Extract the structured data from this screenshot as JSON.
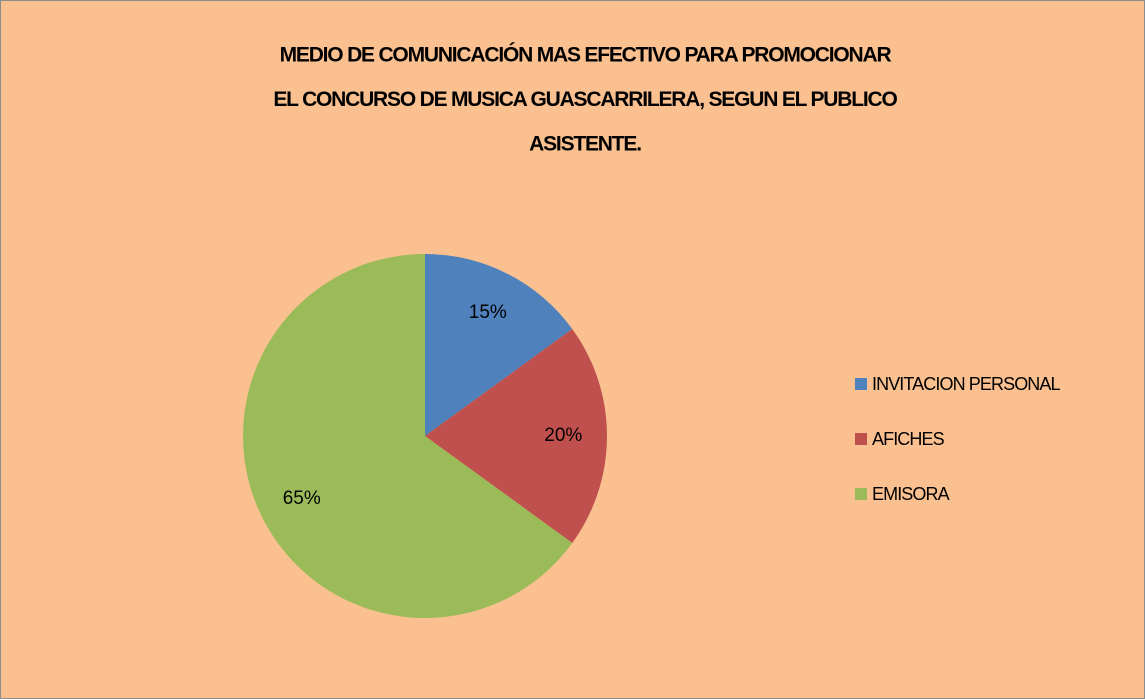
{
  "chart_data": {
    "type": "pie",
    "title": [
      "MEDIO DE COMUNICACIÓN MAS EFECTIVO  PARA PROMOCIONAR",
      "EL CONCURSO DE MUSICA GUASCARRILERA, SEGUN EL PUBLICO",
      "ASISTENTE."
    ],
    "categories": [
      "INVITACION PERSONAL",
      "AFICHES",
      "EMISORA"
    ],
    "values": [
      15,
      20,
      65
    ],
    "value_labels": [
      "15%",
      "20%",
      "65%"
    ],
    "colors": [
      "#4F81BD",
      "#C0504D",
      "#9BBB59"
    ],
    "legend": "right"
  }
}
